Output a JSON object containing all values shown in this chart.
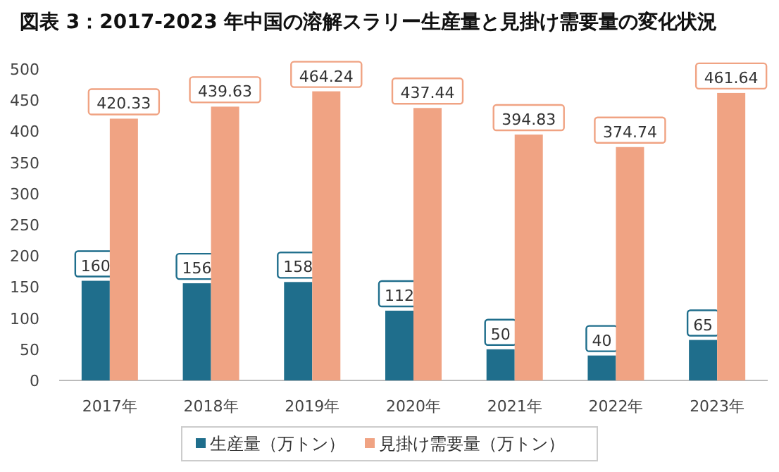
{
  "chart_data": {
    "type": "bar",
    "title": "図表 3：2017-2023 年中国の溶解スラリー生産量と見掛け需要量の変化状況",
    "categories": [
      "2017年",
      "2018年",
      "2019年",
      "2020年",
      "2021年",
      "2022年",
      "2023年"
    ],
    "series": [
      {
        "name": "生産量（万トン）",
        "color": "#1f6e8c",
        "values": [
          160,
          156,
          158,
          112,
          50,
          40,
          65
        ]
      },
      {
        "name": "見掛け需要量（万トン）",
        "color": "#f0a383",
        "values": [
          420.33,
          439.63,
          464.24,
          437.44,
          394.83,
          374.74,
          461.64
        ]
      }
    ],
    "ylim": [
      0,
      500
    ],
    "yticks": [
      0,
      50,
      100,
      150,
      200,
      250,
      300,
      350,
      400,
      450,
      500
    ],
    "data_labels": true,
    "legend": "bottom",
    "grid": false
  }
}
